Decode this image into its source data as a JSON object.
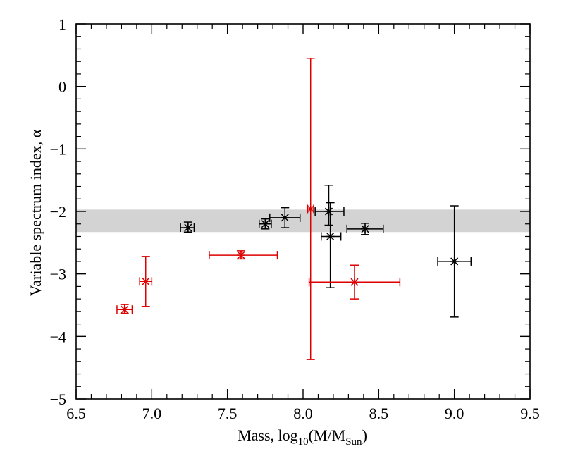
{
  "chart_data": {
    "type": "scatter",
    "title": "",
    "xlabel": {
      "base": "Mass, log",
      "sub1": "10",
      "mid": "(M/M",
      "sub2": "Sun",
      "end": ")"
    },
    "ylabel": "Variable spectrum index, α",
    "xlim": [
      6.5,
      9.5
    ],
    "ylim": [
      -5,
      1
    ],
    "xticks": [
      6.5,
      7.0,
      7.5,
      8.0,
      8.5,
      9.0,
      9.5
    ],
    "xtick_labels": [
      "6.5",
      "7.0",
      "7.5",
      "8.0",
      "8.5",
      "9.0",
      "9.5"
    ],
    "yticks": [
      -5,
      -4,
      -3,
      -2,
      -1,
      0,
      1
    ],
    "ytick_labels": [
      "−5",
      "−4",
      "−3",
      "−2",
      "−1",
      "0",
      "1"
    ],
    "band": {
      "y_low": -2.33,
      "y_high": -1.97,
      "color": "#d3d3d3"
    },
    "series": [
      {
        "name": "black",
        "color": "#000000",
        "points": [
          {
            "x": 7.24,
            "y": -2.26,
            "xlo": 7.19,
            "xhi": 7.28,
            "ylo": -2.33,
            "yhi": -2.17
          },
          {
            "x": 7.75,
            "y": -2.2,
            "xlo": 7.71,
            "xhi": 7.79,
            "ylo": -2.28,
            "yhi": -2.12
          },
          {
            "x": 7.88,
            "y": -2.1,
            "xlo": 7.78,
            "xhi": 7.98,
            "ylo": -2.26,
            "yhi": -1.94
          },
          {
            "x": 8.17,
            "y": -2.0,
            "xlo": 8.08,
            "xhi": 8.27,
            "ylo": -2.22,
            "yhi": -1.58
          },
          {
            "x": 8.18,
            "y": -2.4,
            "xlo": 8.12,
            "xhi": 8.25,
            "ylo": -3.22,
            "yhi": -1.86
          },
          {
            "x": 8.41,
            "y": -2.28,
            "xlo": 8.29,
            "xhi": 8.53,
            "ylo": -2.37,
            "yhi": -2.19
          },
          {
            "x": 9.0,
            "y": -2.8,
            "xlo": 8.89,
            "xhi": 9.11,
            "ylo": -3.69,
            "yhi": -1.91
          }
        ]
      },
      {
        "name": "red",
        "color": "#dd0000",
        "points": [
          {
            "x": 6.82,
            "y": -3.57,
            "xlo": 6.77,
            "xhi": 6.87,
            "ylo": -3.63,
            "yhi": -3.49
          },
          {
            "x": 6.96,
            "y": -3.12,
            "xlo": 6.92,
            "xhi": 7.0,
            "ylo": -3.52,
            "yhi": -2.72
          },
          {
            "x": 7.59,
            "y": -2.7,
            "xlo": 7.38,
            "xhi": 7.83,
            "ylo": -2.76,
            "yhi": -2.63
          },
          {
            "x": 8.05,
            "y": -1.96,
            "xlo": 8.03,
            "xhi": 8.07,
            "ylo": -4.37,
            "yhi": 0.45
          },
          {
            "x": 8.34,
            "y": -3.13,
            "xlo": 8.04,
            "xhi": 8.64,
            "ylo": -3.4,
            "yhi": -2.86
          }
        ]
      }
    ]
  }
}
